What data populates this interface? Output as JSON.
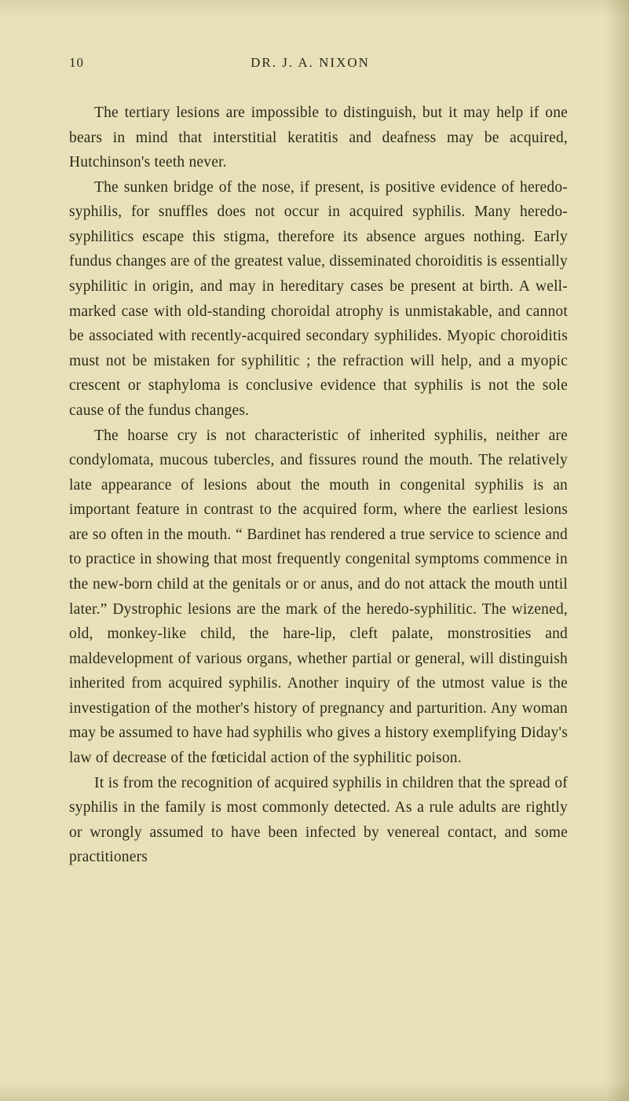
{
  "page": {
    "number": "10",
    "runningHead": "DR. J. A. NIXON",
    "backgroundColor": "#e8e0b8",
    "textColor": "#2a2a1a",
    "fontFamily": "Georgia, serif",
    "bodyFontSize": 19.5,
    "lineHeight": 1.62,
    "paragraphs": [
      "The tertiary lesions are impossible to distinguish, but it may help if one bears in mind that interstitial keratitis and deafness may be acquired, Hutchinson's teeth never.",
      "The sunken bridge of the nose, if present, is positive evidence of heredo-syphilis, for snuffles does not occur in acquired syphilis. Many heredo-syphilitics escape this stigma, therefore its absence argues nothing. Early fundus changes are of the greatest value, disseminated choroiditis is essentially syphilitic in origin, and may in hereditary cases be present at birth. A well-marked case with old-standing choroidal atrophy is unmistakable, and cannot be associated with recently-acquired secondary syphilides. Myopic choroiditis must not be mistaken for syphilitic ; the refraction will help, and a myopic crescent or staphyloma is conclusive evidence that syphilis is not the sole cause of the fundus changes.",
      "The hoarse cry is not characteristic of inherited syphilis, neither are condylomata, mucous tubercles, and fissures round the mouth. The relatively late appearance of lesions about the mouth in congenital syphilis is an important feature in contrast to the acquired form, where the earliest lesions are so often in the mouth. “ Bardinet has rendered a true service to science and to practice in showing that most frequently congenital symptoms commence in the new-born child at the genitals or or anus, and do not attack the mouth until later.” Dystrophic lesions are the mark of the heredo-syphilitic. The wizened, old, monkey-like child, the hare-lip, cleft palate, monstrosities and maldevelopment of various organs, whether partial or general, will distinguish inherited from acquired syphilis. Another inquiry of the utmost value is the investigation of the mother's history of pregnancy and parturition. Any woman may be assumed to have had syphilis who gives a history exemplifying Diday's law of decrease of the fœticidal action of the syphilitic poison.",
      "It is from the recognition of acquired syphilis in children that the spread of syphilis in the family is most commonly detected. As a rule adults are rightly or wrongly assumed to have been infected by venereal contact, and some practitioners"
    ]
  }
}
